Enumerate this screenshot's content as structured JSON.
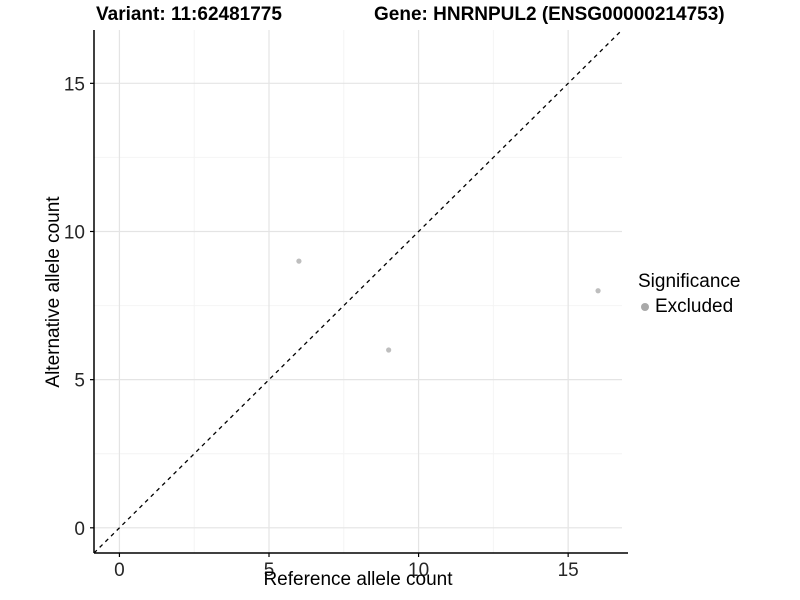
{
  "chart_data": {
    "type": "scatter",
    "title_variant": "Variant: 11:62481775",
    "title_gene": "Gene: HNRNPUL2 (ENSG00000214753)",
    "xlabel": "Reference allele count",
    "ylabel": "Alternative allele count",
    "xlim": [
      -0.85,
      16.8
    ],
    "ylim": [
      -0.85,
      16.8
    ],
    "x_ticks": [
      0,
      5,
      10,
      15
    ],
    "y_ticks": [
      0,
      5,
      10,
      15
    ],
    "x_minor_ticks": [
      2.5,
      7.5,
      12.5
    ],
    "y_minor_ticks": [
      2.5,
      7.5,
      12.5
    ],
    "grid": true,
    "legend_position": "right",
    "legend": {
      "title": "Significance",
      "items": [
        {
          "label": "Excluded",
          "color": "#a9a9a9"
        }
      ]
    },
    "series": [
      {
        "name": "Excluded",
        "color": "#bebebe",
        "marker_radius": 2.6,
        "points": [
          {
            "x": 6,
            "y": 9
          },
          {
            "x": 9,
            "y": 6
          },
          {
            "x": 16,
            "y": 8
          }
        ]
      }
    ],
    "reference_line": {
      "type": "identity y = x",
      "style": "dashed",
      "color": "#000000"
    },
    "colors": {
      "grid_major": "#e4e4e4",
      "grid_minor": "#f4f4f4",
      "axis_line": "#000000",
      "tick_text": "#262626"
    }
  }
}
